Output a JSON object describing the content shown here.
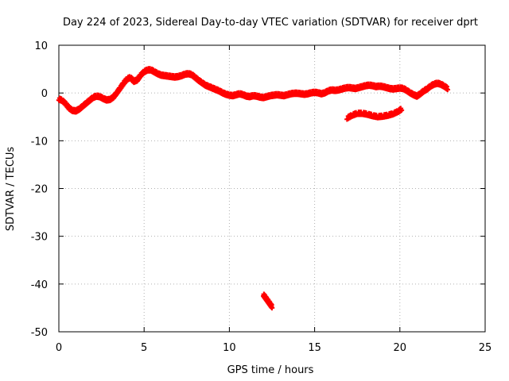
{
  "chart_data": {
    "type": "scatter",
    "title": "Day 224 of 2023, Sidereal Day-to-day VTEC variation (SDTVAR) for receiver dprt",
    "xlabel": "GPS time / hours",
    "ylabel": "SDTVAR / TECUs",
    "xlim": [
      0,
      25
    ],
    "ylim": [
      -50,
      10
    ],
    "xticks": [
      0,
      5,
      10,
      15,
      20,
      25
    ],
    "xtick_labels": [
      "0",
      "5",
      "10",
      "15",
      "20",
      "25"
    ],
    "yticks": [
      10,
      0,
      -10,
      -20,
      -30,
      -40,
      -50
    ],
    "ytick_labels": [
      "10",
      "0",
      "-10",
      "-20",
      "-30",
      "-40",
      "-50"
    ],
    "grid": true,
    "marker": "+",
    "color": "#ff0000",
    "series": [
      {
        "name": "main-trace",
        "points": [
          [
            0.0,
            -1.5
          ],
          [
            0.2,
            -1.8
          ],
          [
            0.4,
            -2.5
          ],
          [
            0.6,
            -3.4
          ],
          [
            0.8,
            -3.9
          ],
          [
            1.0,
            -4.0
          ],
          [
            1.2,
            -3.6
          ],
          [
            1.4,
            -3.0
          ],
          [
            1.6,
            -2.4
          ],
          [
            1.8,
            -1.8
          ],
          [
            2.0,
            -1.2
          ],
          [
            2.2,
            -0.9
          ],
          [
            2.4,
            -1.0
          ],
          [
            2.6,
            -1.4
          ],
          [
            2.8,
            -1.7
          ],
          [
            3.0,
            -1.6
          ],
          [
            3.2,
            -1.1
          ],
          [
            3.4,
            -0.2
          ],
          [
            3.6,
            0.8
          ],
          [
            3.8,
            1.8
          ],
          [
            4.0,
            2.7
          ],
          [
            4.2,
            3.0
          ],
          [
            4.4,
            2.2
          ],
          [
            4.6,
            2.5
          ],
          [
            4.8,
            3.5
          ],
          [
            5.0,
            4.2
          ],
          [
            5.2,
            4.6
          ],
          [
            5.4,
            4.6
          ],
          [
            5.6,
            4.2
          ],
          [
            5.8,
            3.8
          ],
          [
            6.0,
            3.5
          ],
          [
            6.2,
            3.4
          ],
          [
            6.4,
            3.3
          ],
          [
            6.6,
            3.2
          ],
          [
            6.8,
            3.1
          ],
          [
            7.0,
            3.2
          ],
          [
            7.2,
            3.4
          ],
          [
            7.4,
            3.7
          ],
          [
            7.6,
            3.8
          ],
          [
            7.8,
            3.6
          ],
          [
            8.0,
            3.0
          ],
          [
            8.2,
            2.4
          ],
          [
            8.4,
            1.9
          ],
          [
            8.6,
            1.4
          ],
          [
            8.8,
            1.1
          ],
          [
            9.0,
            0.8
          ],
          [
            9.2,
            0.5
          ],
          [
            9.4,
            0.2
          ],
          [
            9.6,
            -0.2
          ],
          [
            9.8,
            -0.5
          ],
          [
            10.0,
            -0.7
          ],
          [
            10.2,
            -0.8
          ],
          [
            10.4,
            -0.6
          ],
          [
            10.6,
            -0.4
          ],
          [
            10.8,
            -0.6
          ],
          [
            11.0,
            -0.9
          ],
          [
            11.2,
            -1.0
          ],
          [
            11.4,
            -0.8
          ],
          [
            11.6,
            -0.9
          ],
          [
            11.8,
            -1.1
          ],
          [
            12.0,
            -1.2
          ],
          [
            12.2,
            -1.0
          ],
          [
            12.4,
            -0.8
          ],
          [
            12.6,
            -0.7
          ],
          [
            12.8,
            -0.6
          ],
          [
            13.0,
            -0.7
          ],
          [
            13.2,
            -0.8
          ],
          [
            13.4,
            -0.6
          ],
          [
            13.6,
            -0.4
          ],
          [
            13.8,
            -0.3
          ],
          [
            14.0,
            -0.3
          ],
          [
            14.2,
            -0.4
          ],
          [
            14.4,
            -0.5
          ],
          [
            14.6,
            -0.4
          ],
          [
            14.8,
            -0.2
          ],
          [
            15.0,
            -0.1
          ],
          [
            15.2,
            -0.2
          ],
          [
            15.4,
            -0.4
          ],
          [
            15.6,
            -0.2
          ],
          [
            15.8,
            0.2
          ],
          [
            16.0,
            0.4
          ],
          [
            16.2,
            0.3
          ],
          [
            16.4,
            0.4
          ],
          [
            16.6,
            0.6
          ],
          [
            16.8,
            0.8
          ],
          [
            17.0,
            0.9
          ],
          [
            17.2,
            0.8
          ],
          [
            17.4,
            0.7
          ],
          [
            17.6,
            0.9
          ],
          [
            17.8,
            1.1
          ],
          [
            18.0,
            1.3
          ],
          [
            18.2,
            1.4
          ],
          [
            18.4,
            1.3
          ],
          [
            18.6,
            1.1
          ],
          [
            18.8,
            1.2
          ],
          [
            19.0,
            1.1
          ],
          [
            19.2,
            0.9
          ],
          [
            19.4,
            0.7
          ],
          [
            19.6,
            0.6
          ],
          [
            19.8,
            0.7
          ],
          [
            20.0,
            0.8
          ],
          [
            20.2,
            0.7
          ],
          [
            20.4,
            0.3
          ],
          [
            20.6,
            -0.2
          ],
          [
            20.8,
            -0.6
          ],
          [
            21.0,
            -0.9
          ],
          [
            21.2,
            -0.4
          ],
          [
            21.4,
            0.2
          ],
          [
            21.6,
            0.6
          ],
          [
            21.8,
            1.2
          ],
          [
            22.0,
            1.6
          ],
          [
            22.2,
            1.8
          ],
          [
            22.4,
            1.6
          ],
          [
            22.6,
            1.2
          ],
          [
            22.8,
            0.7
          ]
        ]
      },
      {
        "name": "lower-branch",
        "points": [
          [
            16.9,
            -5.5
          ],
          [
            17.2,
            -4.9
          ],
          [
            17.5,
            -4.5
          ],
          [
            17.8,
            -4.5
          ],
          [
            18.1,
            -4.7
          ],
          [
            18.4,
            -5.0
          ],
          [
            18.7,
            -5.2
          ],
          [
            19.0,
            -5.1
          ],
          [
            19.3,
            -4.9
          ],
          [
            19.6,
            -4.6
          ],
          [
            19.9,
            -4.1
          ],
          [
            20.1,
            -3.6
          ]
        ]
      },
      {
        "name": "outlier",
        "points": [
          [
            12.0,
            -42.5
          ],
          [
            12.1,
            -43.0
          ],
          [
            12.2,
            -43.5
          ],
          [
            12.3,
            -44.0
          ],
          [
            12.4,
            -44.5
          ],
          [
            12.5,
            -45.0
          ]
        ]
      }
    ]
  }
}
